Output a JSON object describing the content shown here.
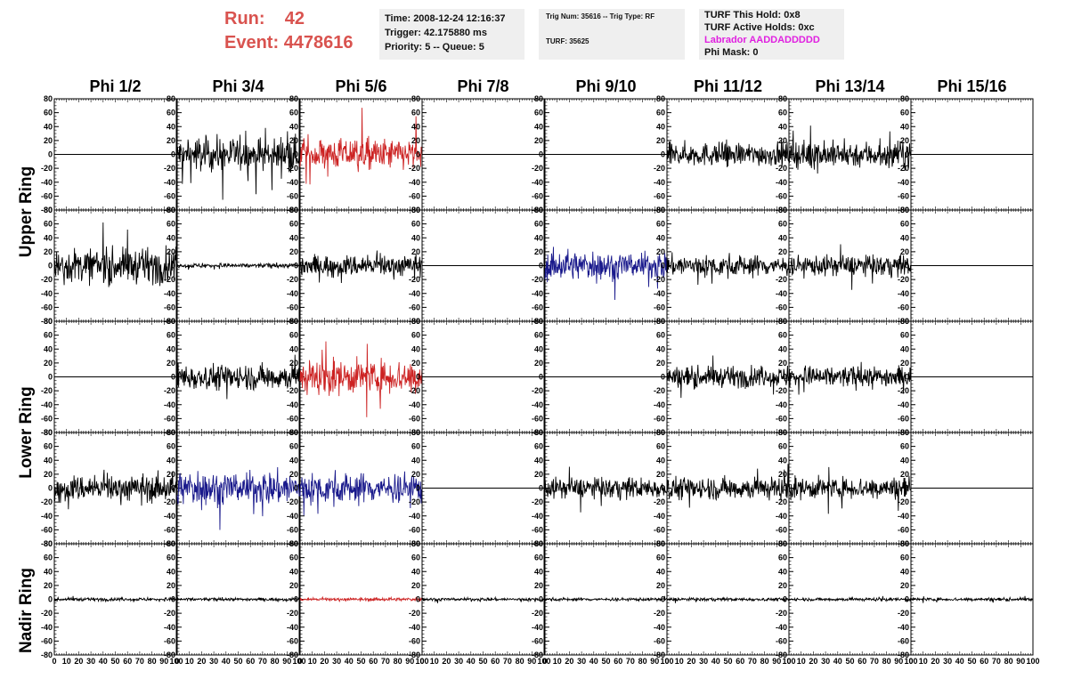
{
  "header": {
    "run_label": "Run:",
    "run_value": "42",
    "event_label": "Event:",
    "event_value": "4478616"
  },
  "info_box_1": {
    "time": "Time: 2008-12-24 12:16:37",
    "trigger": "Trigger: 42.175880 ms",
    "priority": "Priority: 5 -- Queue: 5"
  },
  "info_box_2": {
    "trig": "Trig Num: 35616 -- Trig Type: RF",
    "turf": "TURF: 35625"
  },
  "info_box_3": {
    "this_hold": "TURF This Hold: 0x8",
    "active_holds": "TURF Active Holds: 0xc",
    "labrador": "Labrador AADDADDDDD",
    "phi_mask": "Phi Mask: 0"
  },
  "columns": [
    "Phi 1/2",
    "Phi 3/4",
    "Phi 5/6",
    "Phi 7/8",
    "Phi 9/10",
    "Phi 11/12",
    "Phi 13/14",
    "Phi 15/16"
  ],
  "row_groups": [
    "Upper Ring",
    "Lower Ring",
    "Nadir Ring"
  ],
  "colors": {
    "black": "#000000",
    "red": "#cc2222",
    "blue": "#1a1a8c",
    "magenta": "#e020e0",
    "header_red": "#d9534f",
    "box_grey": "#efefef"
  },
  "chart_data": {
    "type": "line",
    "xlim": [
      0,
      100
    ],
    "ylim": [
      -80,
      80
    ],
    "y_ticks": [
      80,
      60,
      40,
      20,
      0,
      -20,
      -40,
      -60,
      -80
    ],
    "x_tick_labels": [
      "0",
      "10",
      "20",
      "30",
      "40",
      "50",
      "60",
      "70",
      "80",
      "90",
      "100"
    ],
    "grid": false,
    "panels": [
      [
        {
          "color": "black",
          "amp": 0
        },
        {
          "color": "black",
          "amp": 22
        },
        {
          "color": "red",
          "amp": 20
        },
        {
          "color": "black",
          "amp": 0
        },
        {
          "color": "black",
          "amp": 0
        },
        {
          "color": "black",
          "amp": 15
        },
        {
          "color": "black",
          "amp": 17
        },
        {
          "color": "black",
          "amp": 0
        }
      ],
      [
        {
          "color": "black",
          "amp": 22
        },
        {
          "color": "black",
          "amp": 3
        },
        {
          "color": "black",
          "amp": 14
        },
        {
          "color": "black",
          "amp": 0
        },
        {
          "color": "blue",
          "amp": 18
        },
        {
          "color": "black",
          "amp": 14
        },
        {
          "color": "black",
          "amp": 13
        },
        {
          "color": "black",
          "amp": 0
        }
      ],
      [
        {
          "color": "black",
          "amp": 0
        },
        {
          "color": "black",
          "amp": 17
        },
        {
          "color": "red",
          "amp": 22
        },
        {
          "color": "black",
          "amp": 0
        },
        {
          "color": "black",
          "amp": 0
        },
        {
          "color": "black",
          "amp": 13
        },
        {
          "color": "black",
          "amp": 14
        },
        {
          "color": "black",
          "amp": 0
        }
      ],
      [
        {
          "color": "black",
          "amp": 17
        },
        {
          "color": "blue",
          "amp": 22
        },
        {
          "color": "blue",
          "amp": 20
        },
        {
          "color": "black",
          "amp": 0
        },
        {
          "color": "black",
          "amp": 13
        },
        {
          "color": "black",
          "amp": 15
        },
        {
          "color": "black",
          "amp": 14
        },
        {
          "color": "black",
          "amp": 0
        }
      ],
      [
        {
          "color": "black",
          "amp": 2
        },
        {
          "color": "black",
          "amp": 2
        },
        {
          "color": "red",
          "amp": 2
        },
        {
          "color": "black",
          "amp": 2
        },
        {
          "color": "black",
          "amp": 2
        },
        {
          "color": "black",
          "amp": 2
        },
        {
          "color": "black",
          "amp": 2
        },
        {
          "color": "black",
          "amp": 2
        }
      ]
    ]
  }
}
